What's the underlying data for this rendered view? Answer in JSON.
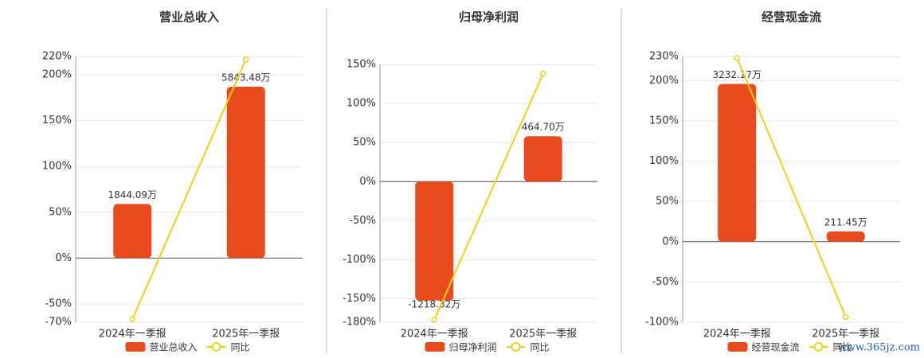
{
  "chart_data": [
    {
      "type": "bar",
      "title": "营业总收入",
      "categories": [
        "2024年一季报",
        "2025年一季报"
      ],
      "series": [
        {
          "name": "营业总收入",
          "color": "#e84c1e",
          "axis": "y2",
          "values": [
            1844.09,
            5843.48
          ],
          "value_labels": [
            "1844.09万",
            "5843.48万"
          ]
        },
        {
          "name": "同比",
          "type": "line",
          "color": "#f0cf1c",
          "values": [
            -66.7,
            216.88
          ]
        }
      ],
      "ylim": [
        -70,
        220
      ],
      "yticks": [
        {
          "value": -70,
          "label": "-70%"
        },
        {
          "value": -50,
          "label": "-50%"
        },
        {
          "value": 0,
          "label": "0%"
        },
        {
          "value": 50,
          "label": "50%"
        },
        {
          "value": 100,
          "label": "100%"
        },
        {
          "value": 150,
          "label": "150%"
        },
        {
          "value": 200,
          "label": "200%"
        },
        {
          "value": 220,
          "label": "220%"
        }
      ],
      "y2lim": [
        -2187.5,
        6875
      ],
      "grid": true
    },
    {
      "type": "bar",
      "title": "归母净利润",
      "categories": [
        "2024年一季报",
        "2025年一季报"
      ],
      "series": [
        {
          "name": "归母净利润",
          "color": "#e84c1e",
          "axis": "y2",
          "values": [
            -1218.32,
            464.7
          ],
          "value_labels": [
            "-1218.32万",
            "464.70万"
          ]
        },
        {
          "name": "同比",
          "type": "line",
          "color": "#f0cf1c",
          "values": [
            -177,
            138.14
          ]
        }
      ],
      "ylim": [
        -180,
        150
      ],
      "yticks": [
        {
          "value": -180,
          "label": "-180%"
        },
        {
          "value": -150,
          "label": "-150%"
        },
        {
          "value": -100,
          "label": "-100%"
        },
        {
          "value": -50,
          "label": "-50%"
        },
        {
          "value": 0,
          "label": "0%"
        },
        {
          "value": 50,
          "label": "50%"
        },
        {
          "value": 100,
          "label": "100%"
        },
        {
          "value": 150,
          "label": "150%"
        }
      ],
      "y2lim": [
        -1440,
        1200
      ],
      "grid": true
    },
    {
      "type": "bar",
      "title": "经营现金流",
      "categories": [
        "2024年一季报",
        "2025年一季报"
      ],
      "series": [
        {
          "name": "经营现金流",
          "color": "#e84c1e",
          "axis": "y2",
          "values": [
            3232.17,
            211.45
          ],
          "value_labels": [
            "3232.17万",
            "211.45万"
          ]
        },
        {
          "name": "同比",
          "type": "line",
          "color": "#f0cf1c",
          "values": [
            228,
            -93.46
          ]
        }
      ],
      "ylim": [
        -100,
        230
      ],
      "yticks": [
        {
          "value": -100,
          "label": "-100%"
        },
        {
          "value": -50,
          "label": "-50%"
        },
        {
          "value": 0,
          "label": "0%"
        },
        {
          "value": 50,
          "label": "50%"
        },
        {
          "value": 100,
          "label": "100%"
        },
        {
          "value": 150,
          "label": "150%"
        },
        {
          "value": 200,
          "label": "200%"
        },
        {
          "value": 230,
          "label": "230%"
        }
      ],
      "y2lim": [
        -1650,
        3795
      ],
      "grid": true
    }
  ],
  "watermark": "www.365jz.com"
}
